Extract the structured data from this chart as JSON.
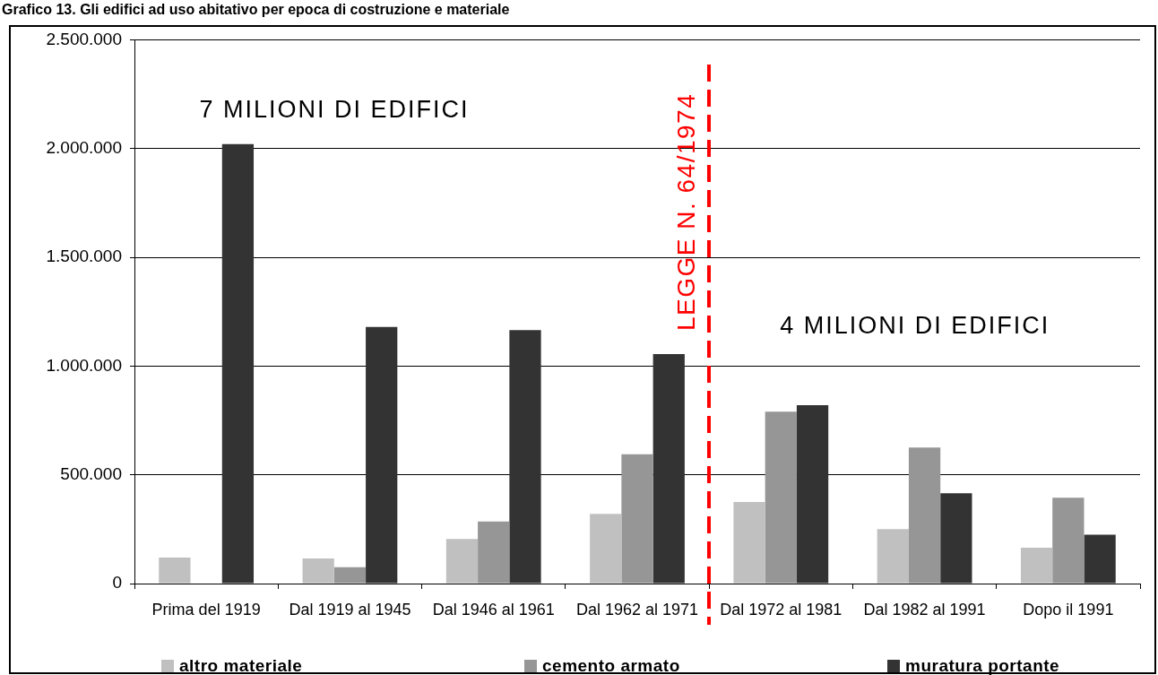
{
  "chart_data": {
    "type": "bar",
    "title": "Grafico 13. Gli edifici ad uso abitativo per epoca di costruzione e materiale",
    "categories": [
      "Prima del 1919",
      "Dal 1919 al 1945",
      "Dal 1946 al 1961",
      "Dal 1962 al 1971",
      "Dal 1972 al 1981",
      "Dal 1982 al 1991",
      "Dopo il 1991"
    ],
    "series": [
      {
        "name": "altro materiale",
        "color": "#c0c0c0",
        "values": [
          120000,
          115000,
          205000,
          320000,
          375000,
          250000,
          165000
        ]
      },
      {
        "name": "cemento armato",
        "color": "#969696",
        "values": [
          null,
          75000,
          285000,
          595000,
          790000,
          625000,
          395000
        ]
      },
      {
        "name": "muratura portante",
        "color": "#333333",
        "values": [
          2020000,
          1180000,
          1165000,
          1055000,
          820000,
          415000,
          225000
        ]
      }
    ],
    "ylim": [
      0,
      2500000
    ],
    "yticks": [
      0,
      {
        "value": 500000,
        "label": "500.000"
      },
      {
        "value": 1000000,
        "label": "1.000.000"
      },
      {
        "value": 1500000,
        "label": "1.500.000"
      },
      {
        "value": 2000000,
        "label": "2.000.000"
      },
      {
        "value": 2500000,
        "label": "2.500.000"
      }
    ],
    "grid": "y",
    "legend": "bottom",
    "annotations": [
      "7 MILIONI DI EDIFICI",
      "LEGGE N. 64/1974",
      "4 MILIONI DI EDIFICI"
    ]
  }
}
